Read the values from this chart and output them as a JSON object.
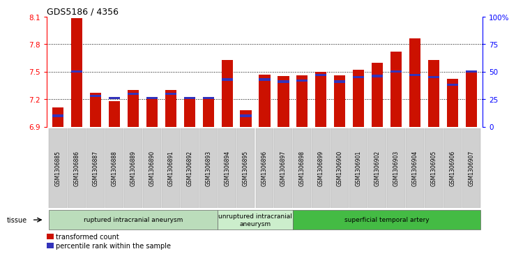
{
  "title": "GDS5186 / 4356",
  "samples": [
    "GSM1306885",
    "GSM1306886",
    "GSM1306887",
    "GSM1306888",
    "GSM1306889",
    "GSM1306890",
    "GSM1306891",
    "GSM1306892",
    "GSM1306893",
    "GSM1306894",
    "GSM1306895",
    "GSM1306896",
    "GSM1306897",
    "GSM1306898",
    "GSM1306899",
    "GSM1306900",
    "GSM1306901",
    "GSM1306902",
    "GSM1306903",
    "GSM1306904",
    "GSM1306905",
    "GSM1306906",
    "GSM1306907"
  ],
  "red_values": [
    7.11,
    8.08,
    7.27,
    7.18,
    7.3,
    7.22,
    7.3,
    7.22,
    7.22,
    7.63,
    7.08,
    7.47,
    7.45,
    7.46,
    7.5,
    7.46,
    7.52,
    7.6,
    7.72,
    7.86,
    7.63,
    7.42,
    7.5
  ],
  "blue_percentile": [
    10,
    50,
    28,
    26,
    30,
    26,
    30,
    26,
    26,
    43,
    10,
    43,
    41,
    42,
    47,
    41,
    45,
    46,
    50,
    47,
    45,
    38,
    50
  ],
  "ylim": [
    6.9,
    8.1
  ],
  "yticks_left": [
    6.9,
    7.2,
    7.5,
    7.8,
    8.1
  ],
  "right_yticks": [
    0,
    25,
    50,
    75,
    100
  ],
  "right_ylabels": [
    "0",
    "25",
    "50",
    "75",
    "100%"
  ],
  "bar_color": "#cc1100",
  "blue_color": "#3333bb",
  "tick_bg_color": "#d0d0d0",
  "plot_bg": "#ffffff",
  "groups": [
    {
      "label": "ruptured intracranial aneurysm",
      "start": 0,
      "end": 9,
      "color": "#bbddbb"
    },
    {
      "label": "unruptured intracranial\naneurysm",
      "start": 9,
      "end": 13,
      "color": "#cceecc"
    },
    {
      "label": "superficial temporal artery",
      "start": 13,
      "end": 23,
      "color": "#44bb44"
    }
  ],
  "legend_items": [
    {
      "color": "#cc1100",
      "label": "transformed count"
    },
    {
      "color": "#3333bb",
      "label": "percentile rank within the sample"
    }
  ],
  "bar_width": 0.6,
  "base": 6.9
}
